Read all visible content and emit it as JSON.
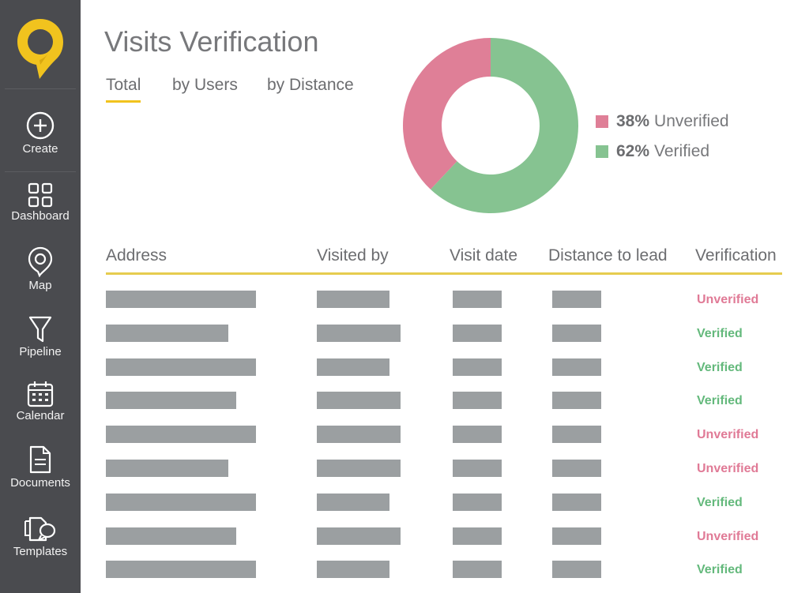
{
  "app": {
    "logo_icon": "location-pin-logo",
    "brand_color": "#f1c31e"
  },
  "sidebar": {
    "items": [
      {
        "id": "create",
        "label": "Create",
        "icon": "plus-circle-icon"
      },
      {
        "id": "dashboard",
        "label": "Dashboard",
        "icon": "dashboard-grid-icon"
      },
      {
        "id": "map",
        "label": "Map",
        "icon": "map-pin-icon"
      },
      {
        "id": "pipeline",
        "label": "Pipeline",
        "icon": "funnel-icon"
      },
      {
        "id": "calendar",
        "label": "Calendar",
        "icon": "calendar-icon"
      },
      {
        "id": "documents",
        "label": "Documents",
        "icon": "document-icon"
      },
      {
        "id": "templates",
        "label": "Templates",
        "icon": "templates-icon"
      }
    ]
  },
  "main": {
    "title": "Visits Verification",
    "tabs": [
      {
        "label": "Total",
        "active": true
      },
      {
        "label": "by Users",
        "active": false
      },
      {
        "label": "by Distance",
        "active": false
      }
    ]
  },
  "chart_data": {
    "type": "pie",
    "variant": "donut",
    "series": [
      {
        "name": "Unverified",
        "value": 38,
        "label": "38%",
        "color": "#df7f97"
      },
      {
        "name": "Verified",
        "value": 62,
        "label": "62%",
        "color": "#86c391"
      }
    ],
    "legend": "right"
  },
  "table": {
    "columns": [
      "Address",
      "Visited by",
      "Visit date",
      "Distance to lead",
      "Verification"
    ],
    "rows": [
      {
        "status": "Unverified"
      },
      {
        "status": "Verified"
      },
      {
        "status": "Verified"
      },
      {
        "status": "Verified"
      },
      {
        "status": "Unverified"
      },
      {
        "status": "Unverified"
      },
      {
        "status": "Verified"
      },
      {
        "status": "Unverified"
      },
      {
        "status": "Verified"
      }
    ]
  }
}
